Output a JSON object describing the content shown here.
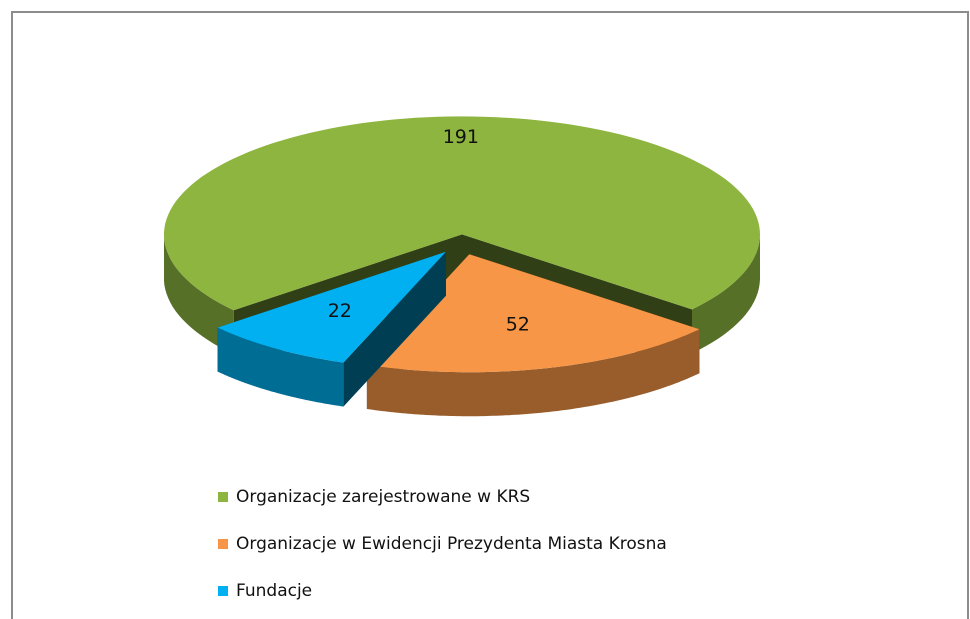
{
  "chart_data": {
    "type": "pie",
    "categories": [
      "Organizacje zarejestrowane w KRS",
      "Organizacje w Ewidencji Prezydenta Miasta Krosna",
      "Fundacje"
    ],
    "values": [
      191,
      52,
      22
    ],
    "colors": [
      "#8db53f",
      "#f79646",
      "#00b0f0"
    ]
  }
}
